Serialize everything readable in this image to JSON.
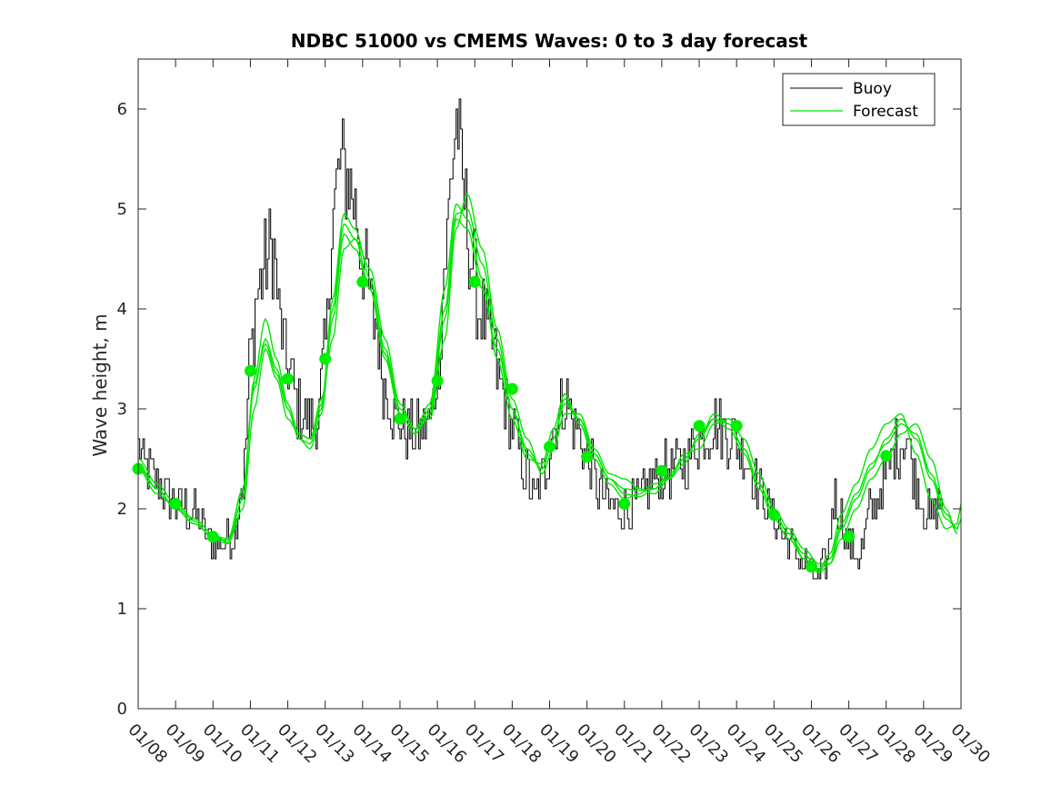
{
  "chart_data": {
    "type": "line",
    "title": "NDBC 51000 vs CMEMS Waves: 0 to 3 day forecast",
    "xlabel": "",
    "ylabel": "Wave height, m",
    "ylim": [
      0,
      6.5
    ],
    "yticks": [
      0,
      1,
      2,
      3,
      4,
      5,
      6
    ],
    "xlim": [
      8,
      30
    ],
    "xtick_values": [
      8,
      9,
      10,
      11,
      12,
      13,
      14,
      15,
      16,
      17,
      18,
      19,
      20,
      21,
      22,
      23,
      24,
      25,
      26,
      27,
      28,
      29,
      30
    ],
    "xtick_labels": [
      "01/08",
      "01/09",
      "01/10",
      "01/11",
      "01/12",
      "01/13",
      "01/14",
      "01/15",
      "01/16",
      "01/17",
      "01/18",
      "01/19",
      "01/20",
      "01/21",
      "01/22",
      "01/23",
      "01/24",
      "01/25",
      "01/26",
      "01/27",
      "01/28",
      "01/29",
      "01/30"
    ],
    "grid": false,
    "legend_placement": "top-right",
    "colors": {
      "buoy": "#000000",
      "forecast": "#00e600",
      "marker": "#00ee00"
    },
    "buoy_anchors": [
      [
        8.0,
        2.6
      ],
      [
        8.2,
        2.4
      ],
      [
        8.5,
        2.25
      ],
      [
        9.0,
        2.05
      ],
      [
        9.5,
        1.95
      ],
      [
        10.0,
        1.65
      ],
      [
        10.5,
        1.7
      ],
      [
        10.8,
        2.3
      ],
      [
        11.0,
        3.6
      ],
      [
        11.2,
        4.2
      ],
      [
        11.4,
        4.5
      ],
      [
        11.6,
        4.6
      ],
      [
        11.8,
        3.8
      ],
      [
        12.0,
        3.4
      ],
      [
        12.3,
        3.0
      ],
      [
        12.6,
        2.85
      ],
      [
        12.8,
        2.9
      ],
      [
        13.0,
        3.6
      ],
      [
        13.2,
        5.0
      ],
      [
        13.4,
        5.4
      ],
      [
        13.6,
        5.3
      ],
      [
        13.8,
        5.0
      ],
      [
        14.0,
        4.5
      ],
      [
        14.3,
        3.9
      ],
      [
        14.6,
        3.2
      ],
      [
        14.9,
        2.9
      ],
      [
        15.2,
        2.8
      ],
      [
        15.5,
        2.75
      ],
      [
        15.8,
        2.9
      ],
      [
        16.0,
        3.4
      ],
      [
        16.2,
        4.5
      ],
      [
        16.4,
        5.5
      ],
      [
        16.5,
        5.9
      ],
      [
        16.7,
        5.1
      ],
      [
        16.9,
        4.5
      ],
      [
        17.1,
        4.0
      ],
      [
        17.4,
        3.7
      ],
      [
        17.7,
        3.2
      ],
      [
        18.0,
        2.8
      ],
      [
        18.3,
        2.4
      ],
      [
        18.6,
        2.1
      ],
      [
        18.8,
        2.3
      ],
      [
        19.1,
        2.8
      ],
      [
        19.4,
        3.1
      ],
      [
        19.7,
        2.8
      ],
      [
        20.0,
        2.5
      ],
      [
        20.3,
        2.2
      ],
      [
        20.6,
        2.05
      ],
      [
        21.0,
        2.0
      ],
      [
        21.4,
        2.1
      ],
      [
        21.8,
        2.3
      ],
      [
        22.2,
        2.4
      ],
      [
        22.6,
        2.5
      ],
      [
        23.0,
        2.7
      ],
      [
        23.4,
        2.85
      ],
      [
        23.8,
        2.75
      ],
      [
        24.2,
        2.55
      ],
      [
        24.6,
        2.2
      ],
      [
        25.0,
        1.9
      ],
      [
        25.4,
        1.65
      ],
      [
        25.8,
        1.45
      ],
      [
        26.2,
        1.3
      ],
      [
        26.4,
        1.5
      ],
      [
        26.6,
        2.1
      ],
      [
        26.8,
        1.9
      ],
      [
        27.0,
        1.6
      ],
      [
        27.3,
        1.55
      ],
      [
        27.6,
        2.0
      ],
      [
        28.0,
        2.3
      ],
      [
        28.2,
        2.6
      ],
      [
        28.5,
        2.7
      ],
      [
        28.8,
        2.3
      ],
      [
        29.0,
        2.0
      ],
      [
        29.2,
        1.9
      ],
      [
        29.5,
        2.1
      ]
    ],
    "forecast_anchors": [
      [
        [
          8.0,
          2.45
        ],
        [
          8.5,
          2.2
        ],
        [
          9.0,
          2.0
        ],
        [
          9.5,
          1.85
        ],
        [
          10.0,
          1.72
        ],
        [
          10.4,
          1.68
        ],
        [
          10.8,
          2.2
        ],
        [
          11.1,
          3.2
        ],
        [
          11.4,
          3.7
        ],
        [
          11.7,
          3.4
        ],
        [
          12.0,
          3.0
        ],
        [
          12.3,
          2.7
        ],
        [
          12.6,
          2.6
        ],
        [
          12.9,
          2.95
        ],
        [
          13.2,
          3.9
        ],
        [
          13.5,
          4.75
        ],
        [
          13.8,
          4.6
        ],
        [
          14.2,
          4.2
        ],
        [
          14.6,
          3.5
        ],
        [
          15.0,
          2.95
        ],
        [
          15.4,
          2.75
        ],
        [
          15.8,
          2.95
        ],
        [
          16.2,
          3.9
        ],
        [
          16.5,
          4.9
        ],
        [
          16.8,
          4.8
        ],
        [
          17.2,
          4.2
        ],
        [
          17.6,
          3.6
        ],
        [
          18.0,
          3.0
        ],
        [
          18.4,
          2.55
        ],
        [
          18.8,
          2.4
        ],
        [
          19.1,
          2.7
        ],
        [
          19.4,
          3.1
        ],
        [
          19.8,
          2.9
        ],
        [
          20.2,
          2.55
        ],
        [
          20.6,
          2.3
        ],
        [
          21.0,
          2.15
        ],
        [
          21.4,
          2.12
        ],
        [
          21.8,
          2.2
        ],
        [
          22.2,
          2.35
        ],
        [
          22.6,
          2.5
        ],
        [
          23.0,
          2.7
        ],
        [
          23.4,
          2.95
        ],
        [
          23.8,
          2.85
        ],
        [
          24.2,
          2.6
        ],
        [
          24.6,
          2.25
        ],
        [
          25.0,
          1.95
        ],
        [
          25.4,
          1.75
        ],
        [
          25.8,
          1.5
        ],
        [
          26.2,
          1.36
        ],
        [
          26.5,
          1.45
        ],
        [
          26.8,
          1.8
        ],
        [
          27.2,
          2.1
        ],
        [
          27.6,
          2.4
        ],
        [
          28.0,
          2.7
        ],
        [
          28.4,
          2.9
        ],
        [
          28.8,
          2.7
        ],
        [
          29.2,
          2.3
        ],
        [
          29.6,
          1.9
        ],
        [
          29.9,
          1.8
        ],
        [
          30.0,
          1.9
        ]
      ],
      [
        [
          8.0,
          2.4
        ],
        [
          8.5,
          2.15
        ],
        [
          9.0,
          2.02
        ],
        [
          9.5,
          1.88
        ],
        [
          10.0,
          1.7
        ],
        [
          10.4,
          1.65
        ],
        [
          10.8,
          2.1
        ],
        [
          11.1,
          3.3
        ],
        [
          11.4,
          3.9
        ],
        [
          11.7,
          3.5
        ],
        [
          12.0,
          3.05
        ],
        [
          12.3,
          2.75
        ],
        [
          12.6,
          2.7
        ],
        [
          12.9,
          3.0
        ],
        [
          13.2,
          4.1
        ],
        [
          13.5,
          4.95
        ],
        [
          13.8,
          4.8
        ],
        [
          14.2,
          4.3
        ],
        [
          14.6,
          3.6
        ],
        [
          15.0,
          3.0
        ],
        [
          15.4,
          2.8
        ],
        [
          15.8,
          3.05
        ],
        [
          16.2,
          4.2
        ],
        [
          16.5,
          5.05
        ],
        [
          16.8,
          4.9
        ],
        [
          17.2,
          4.3
        ],
        [
          17.6,
          3.5
        ],
        [
          18.0,
          2.9
        ],
        [
          18.4,
          2.5
        ],
        [
          18.8,
          2.45
        ],
        [
          19.1,
          2.8
        ],
        [
          19.4,
          3.15
        ],
        [
          19.8,
          2.85
        ],
        [
          20.2,
          2.5
        ],
        [
          20.6,
          2.25
        ],
        [
          21.0,
          2.1
        ],
        [
          21.4,
          2.15
        ],
        [
          21.8,
          2.25
        ],
        [
          22.2,
          2.3
        ],
        [
          22.6,
          2.45
        ],
        [
          23.0,
          2.75
        ],
        [
          23.4,
          2.9
        ],
        [
          23.8,
          2.8
        ],
        [
          24.2,
          2.55
        ],
        [
          24.6,
          2.2
        ],
        [
          25.0,
          1.9
        ],
        [
          25.4,
          1.7
        ],
        [
          25.8,
          1.5
        ],
        [
          26.2,
          1.4
        ],
        [
          26.5,
          1.55
        ],
        [
          26.8,
          1.95
        ],
        [
          27.2,
          2.25
        ],
        [
          27.6,
          2.6
        ],
        [
          28.0,
          2.85
        ],
        [
          28.4,
          2.95
        ],
        [
          28.8,
          2.55
        ],
        [
          29.2,
          2.1
        ],
        [
          29.6,
          1.8
        ],
        [
          29.9,
          1.85
        ],
        [
          30.0,
          2.05
        ]
      ],
      [
        [
          8.0,
          2.5
        ],
        [
          8.5,
          2.25
        ],
        [
          9.0,
          2.05
        ],
        [
          9.5,
          1.9
        ],
        [
          10.0,
          1.75
        ],
        [
          10.4,
          1.66
        ],
        [
          10.8,
          2.0
        ],
        [
          11.1,
          3.0
        ],
        [
          11.4,
          3.6
        ],
        [
          11.7,
          3.3
        ],
        [
          12.0,
          2.9
        ],
        [
          12.3,
          2.75
        ],
        [
          12.6,
          2.7
        ],
        [
          12.9,
          3.1
        ],
        [
          13.2,
          3.7
        ],
        [
          13.5,
          4.6
        ],
        [
          13.8,
          4.7
        ],
        [
          14.2,
          4.4
        ],
        [
          14.6,
          3.7
        ],
        [
          15.0,
          3.05
        ],
        [
          15.4,
          2.8
        ],
        [
          15.8,
          2.9
        ],
        [
          16.2,
          3.7
        ],
        [
          16.5,
          4.8
        ],
        [
          16.8,
          5.15
        ],
        [
          17.2,
          4.6
        ],
        [
          17.6,
          3.8
        ],
        [
          18.0,
          3.1
        ],
        [
          18.4,
          2.7
        ],
        [
          18.8,
          2.35
        ],
        [
          19.1,
          2.6
        ],
        [
          19.4,
          2.95
        ],
        [
          19.8,
          2.95
        ],
        [
          20.2,
          2.6
        ],
        [
          20.6,
          2.35
        ],
        [
          21.0,
          2.3
        ],
        [
          21.4,
          2.2
        ],
        [
          21.8,
          2.15
        ],
        [
          22.2,
          2.3
        ],
        [
          22.6,
          2.55
        ],
        [
          23.0,
          2.6
        ],
        [
          23.4,
          2.85
        ],
        [
          23.8,
          2.9
        ],
        [
          24.2,
          2.7
        ],
        [
          24.6,
          2.35
        ],
        [
          25.0,
          2.0
        ],
        [
          25.4,
          1.8
        ],
        [
          25.8,
          1.6
        ],
        [
          26.2,
          1.45
        ],
        [
          26.5,
          1.45
        ],
        [
          26.8,
          1.7
        ],
        [
          27.2,
          2.0
        ],
        [
          27.6,
          2.3
        ],
        [
          28.0,
          2.5
        ],
        [
          28.4,
          2.75
        ],
        [
          28.8,
          2.85
        ],
        [
          29.2,
          2.5
        ],
        [
          29.6,
          2.0
        ],
        [
          29.9,
          1.75
        ]
      ],
      [
        [
          8.0,
          2.42
        ],
        [
          8.5,
          2.2
        ],
        [
          9.0,
          2.0
        ],
        [
          9.5,
          1.85
        ],
        [
          10.0,
          1.73
        ],
        [
          10.4,
          1.7
        ],
        [
          10.8,
          2.2
        ],
        [
          11.1,
          3.25
        ],
        [
          11.4,
          3.65
        ],
        [
          11.7,
          3.35
        ],
        [
          12.0,
          3.0
        ],
        [
          12.3,
          2.7
        ],
        [
          12.6,
          2.65
        ],
        [
          12.9,
          3.05
        ],
        [
          13.2,
          4.0
        ],
        [
          13.5,
          4.85
        ],
        [
          13.8,
          4.7
        ],
        [
          14.2,
          4.2
        ],
        [
          14.6,
          3.55
        ],
        [
          15.0,
          2.95
        ],
        [
          15.4,
          2.75
        ],
        [
          15.8,
          3.0
        ],
        [
          16.2,
          4.0
        ],
        [
          16.5,
          4.95
        ],
        [
          16.8,
          5.0
        ],
        [
          17.2,
          4.45
        ],
        [
          17.6,
          3.7
        ],
        [
          18.0,
          3.0
        ],
        [
          18.4,
          2.6
        ],
        [
          18.8,
          2.4
        ],
        [
          19.1,
          2.7
        ],
        [
          19.4,
          3.05
        ],
        [
          19.8,
          2.9
        ],
        [
          20.2,
          2.55
        ],
        [
          20.6,
          2.3
        ],
        [
          21.0,
          2.2
        ],
        [
          21.4,
          2.18
        ],
        [
          21.8,
          2.2
        ],
        [
          22.2,
          2.32
        ],
        [
          22.6,
          2.5
        ],
        [
          23.0,
          2.7
        ],
        [
          23.4,
          2.9
        ],
        [
          23.8,
          2.85
        ],
        [
          24.2,
          2.6
        ],
        [
          24.6,
          2.25
        ],
        [
          25.0,
          1.95
        ],
        [
          25.4,
          1.75
        ],
        [
          25.8,
          1.55
        ],
        [
          26.2,
          1.38
        ],
        [
          26.5,
          1.5
        ],
        [
          26.8,
          1.85
        ],
        [
          27.2,
          2.15
        ],
        [
          27.6,
          2.45
        ],
        [
          28.0,
          2.65
        ],
        [
          28.4,
          2.85
        ],
        [
          28.8,
          2.75
        ],
        [
          29.2,
          2.35
        ],
        [
          29.6,
          1.95
        ],
        [
          29.9,
          1.8
        ]
      ]
    ],
    "markers": [
      [
        8,
        2.4
      ],
      [
        9,
        2.05
      ],
      [
        10,
        1.72
      ],
      [
        11,
        3.38
      ],
      [
        12,
        3.3
      ],
      [
        13,
        3.5
      ],
      [
        14,
        4.27
      ],
      [
        15,
        2.9
      ],
      [
        16,
        3.28
      ],
      [
        17,
        4.27
      ],
      [
        18,
        3.2
      ],
      [
        19,
        2.62
      ],
      [
        20,
        2.52
      ],
      [
        21,
        2.05
      ],
      [
        22,
        2.38
      ],
      [
        23,
        2.83
      ],
      [
        24,
        2.83
      ],
      [
        25,
        1.94
      ],
      [
        26,
        1.42
      ],
      [
        27,
        1.72
      ],
      [
        28,
        2.53
      ]
    ],
    "legend": [
      {
        "label": "Buoy",
        "series": "buoy"
      },
      {
        "label": "Forecast",
        "series": "forecast"
      }
    ]
  }
}
